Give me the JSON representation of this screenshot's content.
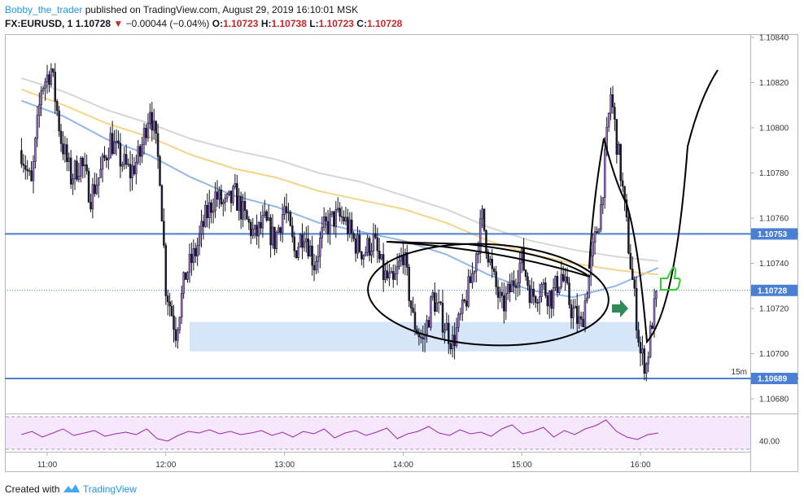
{
  "header": {
    "author": "Bobby_the_trader",
    "published": "published on TradingView.com, August 29, 2019 16:10:01 MSK",
    "symbol": "FX:EURUSD, 1",
    "last": "1.10728",
    "direction_icon": "down-triangle-icon",
    "change": "−0.00044 (−0.04%)",
    "open_label": "O:",
    "open": "1.10723",
    "high_label": "H:",
    "high": "1.10738",
    "low_label": "L:",
    "low": "1.10723",
    "close_label": "C:",
    "close": "1.10728"
  },
  "footer": {
    "created_with": "Created with",
    "brand": "TradingView",
    "brand_icon": "tradingview-logo-icon"
  },
  "chart_data": {
    "type": "candlestick",
    "interval": "1 minute",
    "x_ticks": [
      "11:00",
      "12:00",
      "13:00",
      "14:00",
      "15:00",
      "16:00"
    ],
    "y_ticks": [
      "1.10840",
      "1.10820",
      "1.10800",
      "1.10780",
      "1.10760",
      "1.10740",
      "1.10720",
      "1.10700",
      "1.10680"
    ],
    "ylim": [
      1.10672,
      1.10846
    ],
    "price_labels": [
      {
        "value": "1.10753",
        "kind": "horizontal-line"
      },
      {
        "value": "1.10728",
        "kind": "last-price"
      },
      {
        "value": "1.10689",
        "kind": "horizontal-line"
      }
    ],
    "horizontal_lines": [
      1.10753,
      1.10689
    ],
    "last_price": 1.10728,
    "annotation_text": "15m",
    "zone": {
      "from_time": "12:12",
      "to_time": "16:00",
      "low": 1.10701,
      "high": 1.10714
    },
    "candles": [
      {
        "t": "10:47",
        "c": 1.1079
      },
      {
        "t": "10:52",
        "c": 1.10774
      },
      {
        "t": "10:57",
        "c": 1.10818
      },
      {
        "t": "11:02",
        "c": 1.10826
      },
      {
        "t": "11:07",
        "c": 1.10795
      },
      {
        "t": "11:12",
        "c": 1.10778
      },
      {
        "t": "11:17",
        "c": 1.10785
      },
      {
        "t": "11:22",
        "c": 1.1077
      },
      {
        "t": "11:27",
        "c": 1.1078
      },
      {
        "t": "11:32",
        "c": 1.10795
      },
      {
        "t": "11:37",
        "c": 1.10786
      },
      {
        "t": "11:42",
        "c": 1.1078
      },
      {
        "t": "11:47",
        "c": 1.10788
      },
      {
        "t": "11:52",
        "c": 1.1081
      },
      {
        "t": "11:57",
        "c": 1.1078
      },
      {
        "t": "12:00",
        "c": 1.1073
      },
      {
        "t": "12:05",
        "c": 1.1071
      },
      {
        "t": "12:10",
        "c": 1.10735
      },
      {
        "t": "12:15",
        "c": 1.10745
      },
      {
        "t": "12:20",
        "c": 1.1076
      },
      {
        "t": "12:25",
        "c": 1.1077
      },
      {
        "t": "12:30",
        "c": 1.10765
      },
      {
        "t": "12:35",
        "c": 1.1077
      },
      {
        "t": "12:40",
        "c": 1.1076
      },
      {
        "t": "12:45",
        "c": 1.10752
      },
      {
        "t": "12:50",
        "c": 1.10758
      },
      {
        "t": "12:55",
        "c": 1.1075
      },
      {
        "t": "13:00",
        "c": 1.10765
      },
      {
        "t": "13:05",
        "c": 1.10745
      },
      {
        "t": "13:10",
        "c": 1.10755
      },
      {
        "t": "13:15",
        "c": 1.1074
      },
      {
        "t": "13:20",
        "c": 1.10755
      },
      {
        "t": "13:25",
        "c": 1.1076
      },
      {
        "t": "13:30",
        "c": 1.1076
      },
      {
        "t": "13:35",
        "c": 1.1075
      },
      {
        "t": "13:40",
        "c": 1.10745
      },
      {
        "t": "13:45",
        "c": 1.1075
      },
      {
        "t": "13:50",
        "c": 1.10735
      },
      {
        "t": "13:55",
        "c": 1.1073
      },
      {
        "t": "14:00",
        "c": 1.10745
      },
      {
        "t": "14:05",
        "c": 1.10715
      },
      {
        "t": "14:10",
        "c": 1.10705
      },
      {
        "t": "14:15",
        "c": 1.10725
      },
      {
        "t": "14:20",
        "c": 1.10715
      },
      {
        "t": "14:25",
        "c": 1.10705
      },
      {
        "t": "14:30",
        "c": 1.10718
      },
      {
        "t": "14:35",
        "c": 1.10735
      },
      {
        "t": "14:40",
        "c": 1.1076
      },
      {
        "t": "14:45",
        "c": 1.10735
      },
      {
        "t": "14:50",
        "c": 1.1072
      },
      {
        "t": "14:55",
        "c": 1.1073
      },
      {
        "t": "15:00",
        "c": 1.10742
      },
      {
        "t": "15:05",
        "c": 1.10725
      },
      {
        "t": "15:10",
        "c": 1.1073
      },
      {
        "t": "15:15",
        "c": 1.10725
      },
      {
        "t": "15:20",
        "c": 1.10735
      },
      {
        "t": "15:25",
        "c": 1.1072
      },
      {
        "t": "15:30",
        "c": 1.10712
      },
      {
        "t": "15:35",
        "c": 1.1074
      },
      {
        "t": "15:40",
        "c": 1.10765
      },
      {
        "t": "15:45",
        "c": 1.10815
      },
      {
        "t": "15:50",
        "c": 1.1078
      },
      {
        "t": "15:55",
        "c": 1.1074
      },
      {
        "t": "16:00",
        "c": 1.107
      },
      {
        "t": "16:03",
        "c": 1.10695
      },
      {
        "t": "16:06",
        "c": 1.10715
      },
      {
        "t": "16:09",
        "c": 1.10728
      }
    ],
    "moving_averages": [
      {
        "color": "#90b8e8",
        "values": [
          1.10812,
          1.10805,
          1.10795,
          1.10788,
          1.10778,
          1.1077,
          1.10765,
          1.10758,
          1.10754,
          1.1075,
          1.10744,
          1.10735,
          1.10728,
          1.10725,
          1.1073,
          1.10738
        ]
      },
      {
        "color": "#f3d58a",
        "values": [
          1.10817,
          1.1081,
          1.10802,
          1.10796,
          1.10788,
          1.10782,
          1.10778,
          1.10772,
          1.10768,
          1.10764,
          1.10758,
          1.1075,
          1.10744,
          1.1074,
          1.10737,
          1.10735
        ]
      },
      {
        "color": "#d6d6d6",
        "values": [
          1.10822,
          1.10816,
          1.10808,
          1.10802,
          1.10795,
          1.1079,
          1.10786,
          1.1078,
          1.10776,
          1.1077,
          1.10764,
          1.10756,
          1.1075,
          1.10746,
          1.10743,
          1.10741
        ]
      }
    ],
    "rsi": {
      "tick": "40.00",
      "color": "#9c27b0",
      "values": [
        48,
        52,
        45,
        50,
        55,
        47,
        50,
        53,
        46,
        49,
        51,
        48,
        55,
        43,
        40,
        47,
        52,
        50,
        54,
        49,
        52,
        48,
        50,
        53,
        47,
        51,
        45,
        52,
        49,
        55,
        44,
        50,
        53,
        47,
        51,
        56,
        43,
        49,
        52,
        58,
        50,
        47,
        54,
        49,
        51,
        46,
        55,
        60,
        49,
        52,
        57,
        45,
        53,
        48,
        55,
        59,
        66,
        52,
        45,
        42,
        48,
        50
      ]
    },
    "drawings": [
      "ellipse",
      "wedge",
      "projection-curve",
      "arrow",
      "thumbs-up"
    ]
  }
}
